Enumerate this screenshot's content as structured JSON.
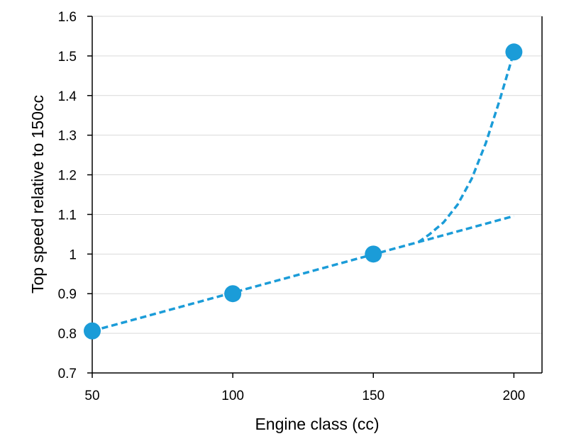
{
  "chart_data": {
    "type": "scatter",
    "title": "",
    "xlabel": "Engine class (cc)",
    "ylabel": "Top speed relative to 150cc",
    "xlim": [
      50,
      210
    ],
    "ylim": [
      0.7,
      1.6
    ],
    "x_ticks": [
      50,
      100,
      150,
      200
    ],
    "x_tick_labels": [
      "50",
      "100",
      "150",
      "200"
    ],
    "y_ticks": [
      0.7,
      0.8,
      0.9,
      1.0,
      1.1,
      1.2,
      1.3,
      1.4,
      1.5,
      1.6
    ],
    "y_tick_labels": [
      "0.7",
      "0.8",
      "0.9",
      "1",
      "1.1",
      "1.2",
      "1.3",
      "1.4",
      "1.5",
      "1.6"
    ],
    "grid": "horizontal",
    "legend": "none",
    "color": "#1b9cd8",
    "series": [
      {
        "style": "markers",
        "points": [
          {
            "x": 50,
            "y": 0.806
          },
          {
            "x": 100,
            "y": 0.9
          },
          {
            "x": 150,
            "y": 1.0
          },
          {
            "x": 200,
            "y": 1.51
          }
        ]
      },
      {
        "style": "dashed-line",
        "points": [
          {
            "x": 50,
            "y": 0.806
          },
          {
            "x": 200,
            "y": 1.096
          }
        ]
      },
      {
        "style": "dashed-curve",
        "points": [
          {
            "x": 166,
            "y": 1.03
          },
          {
            "x": 170,
            "y": 1.05
          },
          {
            "x": 175,
            "y": 1.08
          },
          {
            "x": 180,
            "y": 1.125
          },
          {
            "x": 185,
            "y": 1.19
          },
          {
            "x": 190,
            "y": 1.28
          },
          {
            "x": 195,
            "y": 1.39
          },
          {
            "x": 200,
            "y": 1.51
          }
        ]
      }
    ]
  }
}
